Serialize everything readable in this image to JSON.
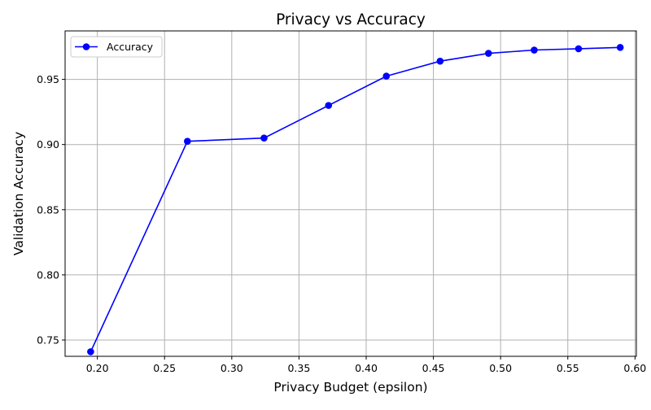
{
  "chart_data": {
    "type": "line",
    "title": "Privacy vs Accuracy",
    "xlabel": "Privacy Budget (epsilon)",
    "ylabel": "Validation Accuracy",
    "xlim": [
      0.176,
      0.601
    ],
    "ylim": [
      0.7375,
      0.9872
    ],
    "x_ticks": [
      0.2,
      0.25,
      0.3,
      0.35,
      0.4,
      0.45,
      0.5,
      0.55,
      0.6
    ],
    "x_tick_labels": [
      "0.20",
      "0.25",
      "0.30",
      "0.35",
      "0.40",
      "0.45",
      "0.50",
      "0.55",
      "0.60"
    ],
    "y_ticks": [
      0.75,
      0.8,
      0.85,
      0.9,
      0.95
    ],
    "y_tick_labels": [
      "0.75",
      "0.80",
      "0.85",
      "0.90",
      "0.95"
    ],
    "grid": true,
    "legend_position": "top-left",
    "series": [
      {
        "name": "Accuracy",
        "color": "#0000ff",
        "marker": "circle",
        "x": [
          0.195,
          0.267,
          0.324,
          0.372,
          0.415,
          0.455,
          0.491,
          0.525,
          0.558,
          0.589
        ],
        "y": [
          0.741,
          0.9025,
          0.905,
          0.93,
          0.9525,
          0.964,
          0.97,
          0.9725,
          0.9735,
          0.9745
        ]
      }
    ]
  }
}
